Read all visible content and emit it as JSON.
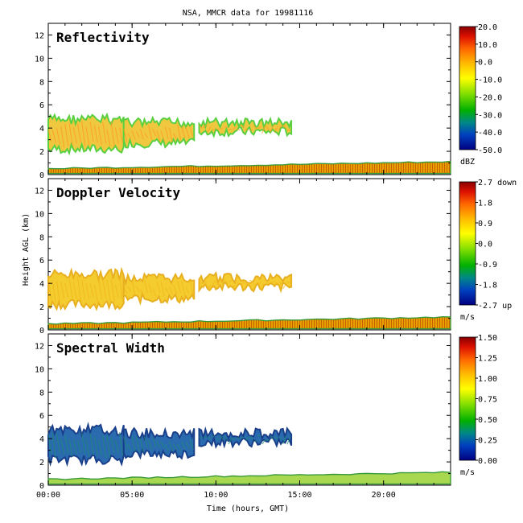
{
  "chart_data": {
    "type": "heatmap",
    "title": "NSA, MMCR data for 19981116",
    "xlabel": "Time (hours, GMT)",
    "ylabel": "Height AGL (km)",
    "x_ticks": [
      "00:00",
      "05:00",
      "10:00",
      "15:00",
      "20:00"
    ],
    "x_tick_hours": [
      0,
      5,
      10,
      15,
      20
    ],
    "xlim_hours": [
      0,
      24
    ],
    "ylim_km": [
      0,
      13
    ],
    "y_ticks": [
      0,
      2,
      4,
      6,
      8,
      10,
      12
    ],
    "panels": [
      {
        "name": "Reflectivity",
        "units": "dBZ",
        "colorbar_labels": [
          "20.0",
          "10.0",
          "0.0",
          "-10.0",
          "-20.0",
          "-30.0",
          "-40.0",
          "-50.0"
        ],
        "range": [
          -50,
          20
        ],
        "echo_regions": [
          {
            "from_h": 0.0,
            "to_h": 24.0,
            "base_km": 0.1,
            "top_km": 1.0,
            "note": "surface layer"
          },
          {
            "from_h": 0.0,
            "to_h": 4.5,
            "base_km": 1.8,
            "top_km": 5.2,
            "note": "main cloud"
          },
          {
            "from_h": 4.5,
            "to_h": 8.7,
            "base_km": 2.3,
            "top_km": 4.9
          },
          {
            "from_h": 9.0,
            "to_h": 14.5,
            "base_km": 3.3,
            "top_km": 4.9
          }
        ]
      },
      {
        "name": "Doppler Velocity",
        "units": "m/s",
        "colorbar_labels": [
          "2.7 down",
          "1.8",
          "0.9",
          "0.0",
          "-0.9",
          "-1.8",
          "-2.7 up"
        ],
        "range": [
          -2.7,
          2.7
        ]
      },
      {
        "name": "Spectral Width",
        "units": "m/s",
        "colorbar_labels": [
          "1.50",
          "1.25",
          "1.00",
          "0.75",
          "0.50",
          "0.25",
          "0.00"
        ],
        "range": [
          0,
          1.5
        ]
      }
    ]
  }
}
